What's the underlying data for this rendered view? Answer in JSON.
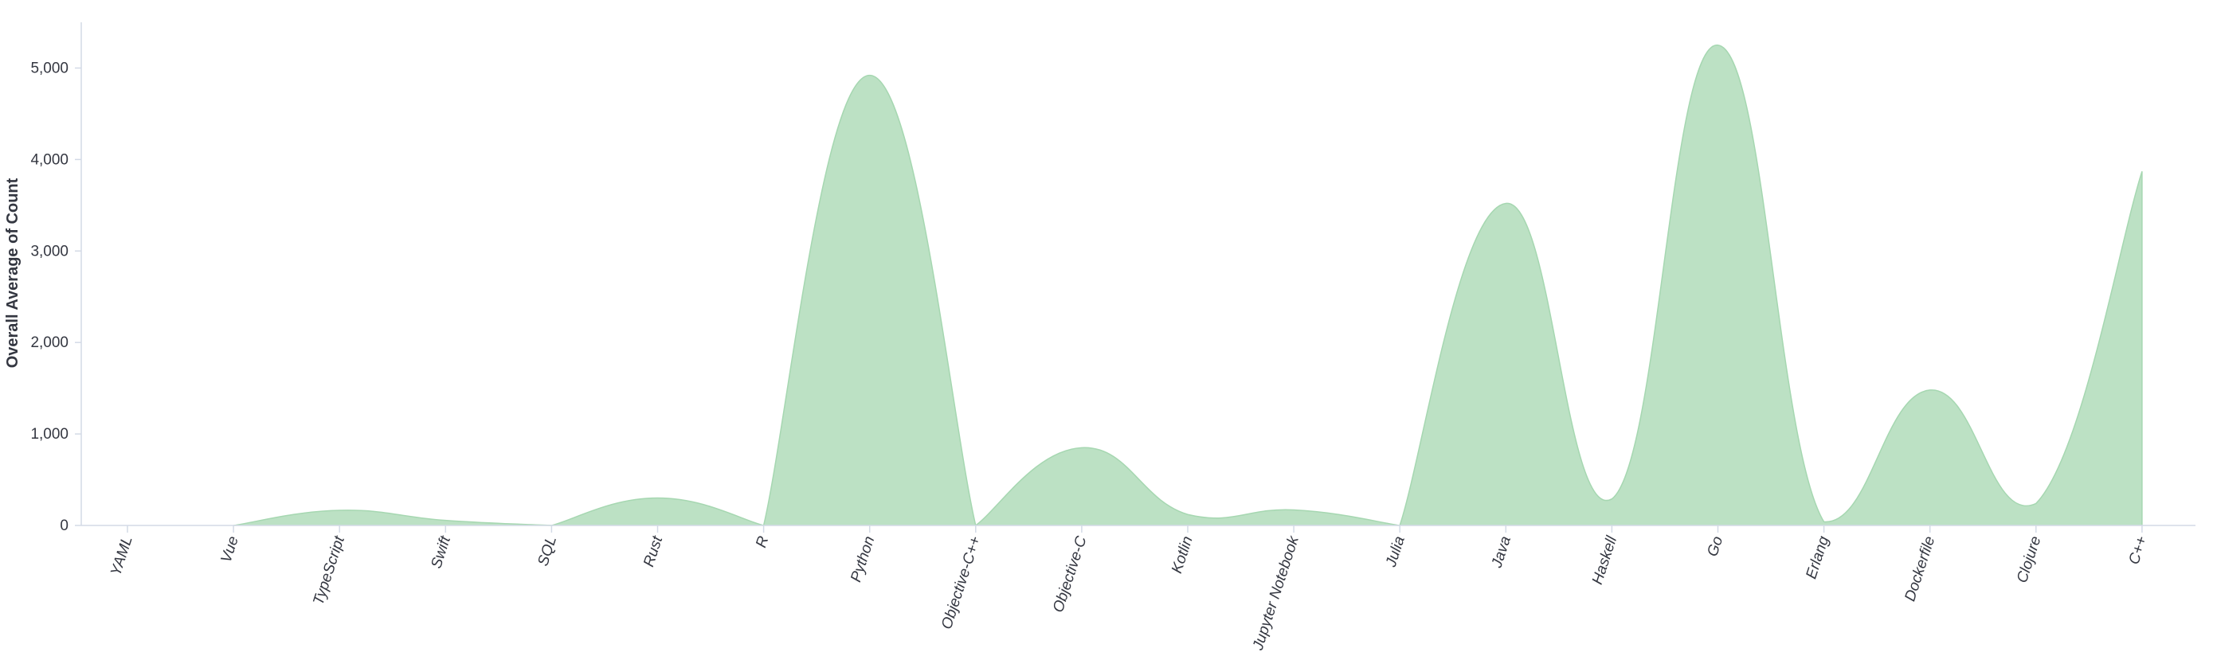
{
  "chart_data": {
    "type": "area",
    "title": "",
    "xlabel": "",
    "ylabel": "Overall Average of Count",
    "categories": [
      "YAML",
      "Vue",
      "TypeScript",
      "Swift",
      "SQL",
      "Rust",
      "R",
      "Python",
      "Objective-C++",
      "Objective-C",
      "Kotlin",
      "Jupyter Notebook",
      "Julia",
      "Java",
      "Haskell",
      "Go",
      "Erlang",
      "Dockerfile",
      "Clojure",
      "C++"
    ],
    "series": [
      {
        "values": [
          null,
          0,
          165,
          55,
          0,
          300,
          0,
          4920,
          0,
          850,
          120,
          170,
          0,
          3520,
          290,
          5250,
          40,
          1480,
          240,
          3870
        ]
      }
    ],
    "ylim": [
      0,
      5500
    ],
    "yticks": [
      0,
      1000,
      2000,
      3000,
      4000,
      5000
    ],
    "ytick_labels": [
      "0",
      "1,000",
      "2,000",
      "3,000",
      "4,000",
      "5,000"
    ],
    "grid": false,
    "legend": "none",
    "colors": {
      "fill": "#bce1c4",
      "stroke": "#a6d7b1",
      "axis": "#d3dae6",
      "text": "#343741"
    }
  }
}
